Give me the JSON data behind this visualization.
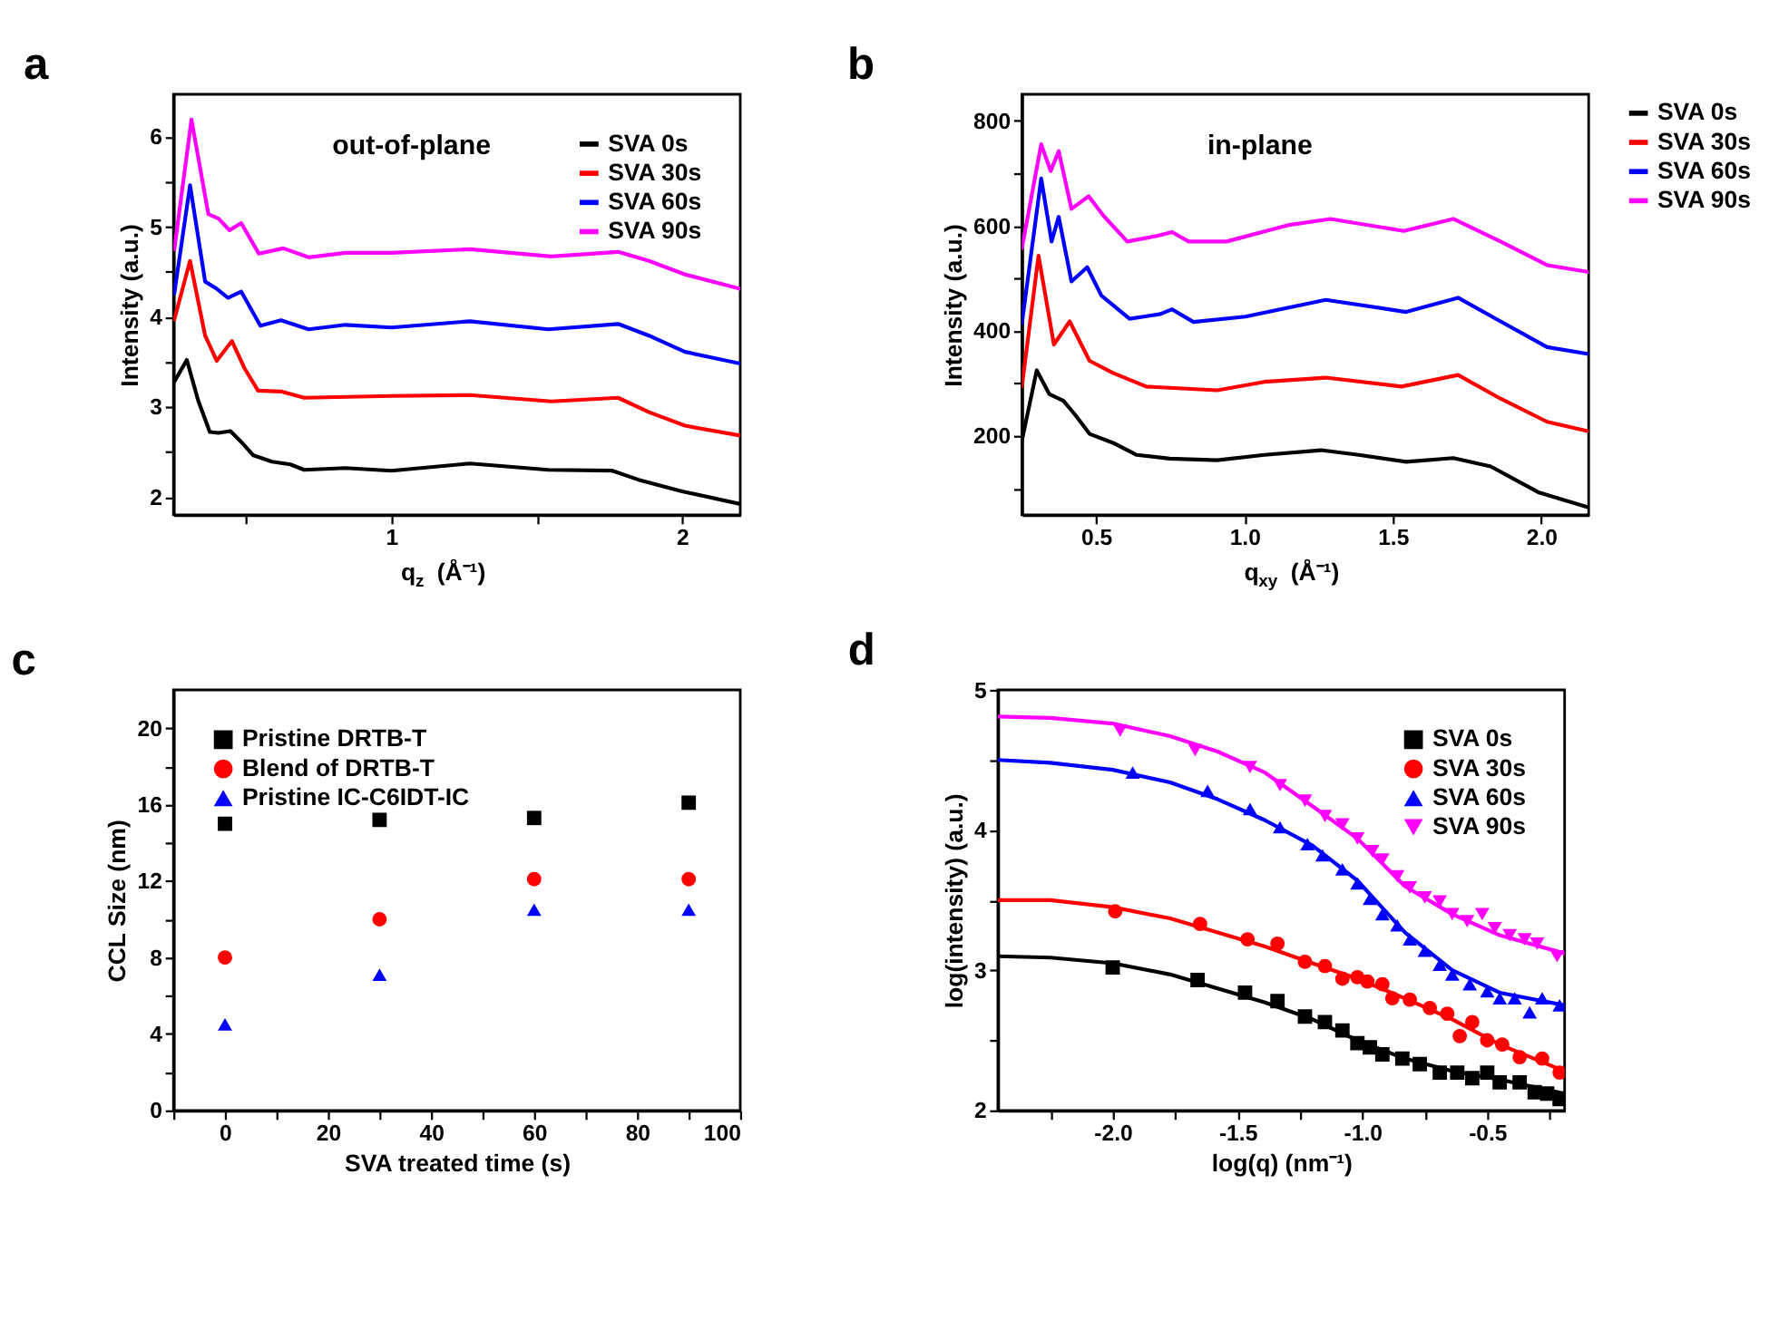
{
  "chart_data": [
    {
      "type": "line",
      "title": "a",
      "xlabel": "q$_{z}$ (Å⁻¹)",
      "ylabel": "Intensity (a.u.)",
      "annotations": [
        "out-of-plane"
      ],
      "legend": "top right",
      "grid": false,
      "xlim": [
        0.25,
        2.2
      ],
      "xticks": [
        {
          "value": 0.5,
          "label": null
        },
        1,
        {
          "value": 1.5,
          "label": null
        },
        2
      ],
      "ylim": [
        1.8,
        6.47
      ],
      "yticks": [
        2,
        {
          "value": 2.5,
          "label": null
        },
        3,
        {
          "value": 3.5,
          "label": null
        },
        4,
        {
          "value": 4.5,
          "label": null
        },
        5,
        {
          "value": 5.5,
          "label": null
        },
        6
      ],
      "series": [
        {
          "name": "SVA 0s",
          "color": "#000000",
          "x": [
            0.253,
            0.296,
            0.335,
            0.375,
            0.405,
            0.446,
            0.486,
            0.525,
            0.589,
            0.652,
            0.7,
            0.842,
            1.0,
            1.27,
            1.54,
            1.76,
            1.85,
            2.0,
            2.2
          ],
          "values": [
            3.28,
            3.52,
            3.07,
            2.72,
            2.71,
            2.73,
            2.6,
            2.46,
            2.39,
            2.36,
            2.3,
            2.32,
            2.29,
            2.37,
            2.3,
            2.29,
            2.19,
            2.06,
            1.92
          ]
        },
        {
          "name": "SVA 30s",
          "color": "#ff0000",
          "x": [
            0.253,
            0.307,
            0.359,
            0.399,
            0.451,
            0.494,
            0.541,
            0.62,
            0.7,
            1.0,
            1.27,
            1.55,
            1.78,
            1.886,
            2.01,
            2.2
          ],
          "values": [
            3.97,
            4.62,
            3.79,
            3.51,
            3.73,
            3.43,
            3.18,
            3.17,
            3.1,
            3.12,
            3.13,
            3.06,
            3.1,
            2.94,
            2.79,
            2.68
          ]
        },
        {
          "name": "SVA 60s",
          "color": "#0000ff",
          "x": [
            0.253,
            0.307,
            0.359,
            0.399,
            0.438,
            0.483,
            0.549,
            0.62,
            0.715,
            0.842,
            1.0,
            1.27,
            1.54,
            1.78,
            1.886,
            2.01,
            2.2
          ],
          "values": [
            4.26,
            5.46,
            4.39,
            4.31,
            4.21,
            4.28,
            3.9,
            3.96,
            3.86,
            3.91,
            3.88,
            3.95,
            3.86,
            3.92,
            3.79,
            3.61,
            3.48
          ]
        },
        {
          "name": "SVA 90s",
          "color": "#ff00ff",
          "x": [
            0.253,
            0.312,
            0.37,
            0.405,
            0.443,
            0.483,
            0.544,
            0.628,
            0.715,
            0.842,
            1.0,
            1.27,
            1.55,
            1.78,
            1.886,
            2.01,
            2.2
          ],
          "values": [
            4.75,
            6.19,
            5.14,
            5.09,
            4.96,
            5.04,
            4.7,
            4.76,
            4.66,
            4.71,
            4.71,
            4.75,
            4.67,
            4.72,
            4.62,
            4.47,
            4.31
          ]
        }
      ]
    },
    {
      "type": "line",
      "title": "b",
      "xlabel": "q$_{xy}$ (Å⁻¹)",
      "ylabel": "Intensity (a.u.)",
      "annotations": [
        "in-plane"
      ],
      "legend": "right",
      "grid": false,
      "xlim": [
        0.25,
        2.16
      ],
      "xticks": [
        0.5,
        {
          "value": 1,
          "label": "1.0"
        },
        1.5,
        {
          "value": 2,
          "label": "2.0"
        }
      ],
      "ylim": [
        50,
        850
      ],
      "yticks": [
        {
          "value": 100,
          "label": null
        },
        200,
        {
          "value": 300,
          "label": null
        },
        400,
        {
          "value": 500,
          "label": null
        },
        600,
        {
          "value": 700,
          "label": null
        },
        800
      ],
      "series": [
        {
          "name": "SVA 0s",
          "color": "#000000",
          "x": [
            0.25,
            0.3,
            0.342,
            0.39,
            0.43,
            0.478,
            0.557,
            0.637,
            0.748,
            0.908,
            1.067,
            1.258,
            1.385,
            1.545,
            1.704,
            1.83,
            1.99,
            2.16
          ],
          "values": [
            191,
            325,
            280,
            267,
            240,
            204,
            187,
            164,
            157,
            154,
            164,
            173,
            164,
            151,
            158,
            142,
            93,
            64
          ]
        },
        {
          "name": "SVA 30s",
          "color": "#ff0000",
          "x": [
            0.25,
            0.306,
            0.358,
            0.411,
            0.478,
            0.557,
            0.669,
            0.908,
            1.067,
            1.274,
            1.529,
            1.72,
            1.863,
            2.02,
            2.16
          ],
          "values": [
            294,
            543,
            374,
            418,
            343,
            320,
            294,
            287,
            303,
            311,
            294,
            316,
            271,
            227,
            209
          ]
        },
        {
          "name": "SVA 60s",
          "color": "#0000ff",
          "x": [
            0.25,
            0.315,
            0.35,
            0.374,
            0.417,
            0.47,
            0.518,
            0.613,
            0.717,
            0.756,
            0.828,
            1.003,
            1.274,
            1.545,
            1.72,
            1.863,
            2.02,
            2.16
          ],
          "values": [
            414,
            690,
            570,
            617,
            494,
            521,
            467,
            423,
            432,
            441,
            417,
            427,
            459,
            436,
            463,
            418,
            369,
            356
          ]
        },
        {
          "name": "SVA 90s",
          "color": "#ff00ff",
          "x": [
            0.25,
            0.315,
            0.347,
            0.374,
            0.417,
            0.475,
            0.525,
            0.605,
            0.709,
            0.756,
            0.812,
            0.94,
            1.146,
            1.29,
            1.537,
            1.704,
            1.863,
            2.02,
            2.16
          ],
          "values": [
            557,
            755,
            704,
            742,
            632,
            656,
            619,
            570,
            581,
            588,
            570,
            570,
            601,
            613,
            590,
            613,
            570,
            525,
            512
          ]
        }
      ]
    },
    {
      "type": "scatter",
      "title": "c",
      "xlabel": "SVA treated time (s)",
      "ylabel": "CCL Size (nm)",
      "legend": "top left",
      "grid": false,
      "x": [
        0,
        30,
        60,
        90
      ],
      "xlim": [
        -10,
        100
      ],
      "xticks": [
        {
          "value": -10,
          "label": null
        },
        0,
        {
          "value": 10,
          "label": null
        },
        20,
        {
          "value": 30,
          "label": null
        },
        40,
        {
          "value": 50,
          "label": null
        },
        60,
        {
          "value": 70,
          "label": null
        },
        80,
        {
          "value": 90,
          "label": null
        },
        100
      ],
      "ylim": [
        0,
        22
      ],
      "yticks": [
        0,
        {
          "value": 2,
          "label": null
        },
        4,
        {
          "value": 6,
          "label": null
        },
        8,
        {
          "value": 10,
          "label": null
        },
        12,
        {
          "value": 14,
          "label": null
        },
        16,
        {
          "value": 18,
          "label": null
        },
        20
      ],
      "series": [
        {
          "name": "Pristine DRTB-T",
          "color": "#000000",
          "marker": "square",
          "values": [
            15.0,
            15.2,
            15.3,
            16.1
          ]
        },
        {
          "name": "Blend of  DRTB-T",
          "color": "#ff0000",
          "marker": "circle",
          "values": [
            8.0,
            10.0,
            12.1,
            12.1
          ]
        },
        {
          "name": "Pristine IC-C6IDT-IC",
          "color": "#0000ff",
          "marker": "triangle",
          "values": [
            4.5,
            7.1,
            10.5,
            10.5
          ]
        }
      ]
    },
    {
      "type": "scatter",
      "title": "d",
      "xlabel": "log(q) (nm⁻¹)",
      "ylabel": "log(intensity) (a.u.)",
      "legend": "top right",
      "grid": false,
      "xlim": [
        -2.46,
        -0.19
      ],
      "xticks": [
        {
          "value": -2.25,
          "label": null
        },
        {
          "value": -2,
          "label": "-2.0"
        },
        {
          "value": -1.75,
          "label": null
        },
        -1.5,
        {
          "value": -1.25,
          "label": null
        },
        {
          "value": -1,
          "label": "-1.0"
        },
        {
          "value": -0.75,
          "label": null
        },
        -0.5,
        {
          "value": -0.25,
          "label": null
        }
      ],
      "ylim": [
        2,
        5
      ],
      "yticks": [
        2,
        {
          "value": 2.5,
          "label": null
        },
        3,
        {
          "value": 3.5,
          "label": null
        },
        4,
        {
          "value": 4.5,
          "label": null
        },
        5
      ],
      "series": [
        {
          "name": "SVA 0s",
          "color": "#000000",
          "marker": "square",
          "x": [
            -2.0,
            -1.66,
            -1.47,
            -1.34,
            -1.23,
            -1.15,
            -1.08,
            -1.02,
            -0.97,
            -0.92,
            -0.84,
            -0.77,
            -0.69,
            -0.62,
            -0.56,
            -0.5,
            -0.45,
            -0.37,
            -0.31,
            -0.26,
            -0.21
          ],
          "values": [
            3.02,
            2.93,
            2.84,
            2.78,
            2.67,
            2.63,
            2.57,
            2.48,
            2.45,
            2.4,
            2.37,
            2.33,
            2.27,
            2.27,
            2.23,
            2.27,
            2.2,
            2.2,
            2.13,
            2.12,
            2.08
          ]
        },
        {
          "name": "SVA 30s",
          "color": "#ff0000",
          "marker": "circle",
          "x": [
            -1.99,
            -1.65,
            -1.46,
            -1.34,
            -1.23,
            -1.15,
            -1.08,
            -1.02,
            -0.98,
            -0.92,
            -0.88,
            -0.81,
            -0.73,
            -0.66,
            -0.61,
            -0.56,
            -0.5,
            -0.44,
            -0.37,
            -0.28,
            -0.21
          ],
          "values": [
            3.42,
            3.33,
            3.22,
            3.19,
            3.06,
            3.03,
            2.94,
            2.95,
            2.92,
            2.9,
            2.8,
            2.79,
            2.73,
            2.69,
            2.53,
            2.63,
            2.5,
            2.47,
            2.38,
            2.37,
            2.27
          ]
        },
        {
          "name": "SVA 60s",
          "color": "#0000ff",
          "marker": "triangle",
          "x": [
            -1.92,
            -1.62,
            -1.45,
            -1.33,
            -1.22,
            -1.16,
            -1.08,
            -1.02,
            -0.97,
            -0.92,
            -0.86,
            -0.81,
            -0.75,
            -0.69,
            -0.64,
            -0.57,
            -0.5,
            -0.45,
            -0.39,
            -0.33,
            -0.28,
            -0.21
          ],
          "values": [
            4.41,
            4.28,
            4.15,
            4.02,
            3.9,
            3.82,
            3.72,
            3.62,
            3.51,
            3.4,
            3.32,
            3.22,
            3.14,
            3.04,
            2.97,
            2.9,
            2.85,
            2.8,
            2.8,
            2.7,
            2.8,
            2.75
          ]
        },
        {
          "name": "SVA 90s",
          "color": "#ff00ff",
          "marker": "triangle-down",
          "x": [
            -1.97,
            -1.67,
            -1.45,
            -1.33,
            -1.23,
            -1.15,
            -1.08,
            -1.02,
            -0.96,
            -0.92,
            -0.86,
            -0.81,
            -0.75,
            -0.69,
            -0.64,
            -0.58,
            -0.52,
            -0.47,
            -0.41,
            -0.35,
            -0.3,
            -0.22
          ],
          "values": [
            4.71,
            4.57,
            4.45,
            4.32,
            4.21,
            4.1,
            4.04,
            3.94,
            3.85,
            3.79,
            3.67,
            3.59,
            3.52,
            3.49,
            3.4,
            3.35,
            3.4,
            3.3,
            3.25,
            3.22,
            3.19,
            3.1
          ]
        },
        {
          "type": "line",
          "color": "#000000",
          "x": [
            -2.46,
            -2.25,
            -2.0,
            -1.77,
            -1.58,
            -1.39,
            -1.2,
            -1.02,
            -0.83,
            -0.64,
            -0.45,
            -0.19
          ],
          "values": [
            3.1,
            3.09,
            3.05,
            2.97,
            2.87,
            2.77,
            2.65,
            2.5,
            2.37,
            2.28,
            2.22,
            2.12
          ]
        },
        {
          "type": "line",
          "color": "#ff0000",
          "x": [
            -2.46,
            -2.25,
            -2.0,
            -1.77,
            -1.58,
            -1.39,
            -1.2,
            -1.02,
            -0.83,
            -0.64,
            -0.45,
            -0.19
          ],
          "values": [
            3.5,
            3.5,
            3.45,
            3.37,
            3.27,
            3.17,
            3.05,
            2.94,
            2.8,
            2.65,
            2.47,
            2.28
          ]
        },
        {
          "type": "line",
          "color": "#0000ff",
          "x": [
            -2.46,
            -2.25,
            -2.0,
            -1.77,
            -1.58,
            -1.39,
            -1.2,
            -1.02,
            -0.83,
            -0.64,
            -0.45,
            -0.19
          ],
          "values": [
            4.5,
            4.48,
            4.43,
            4.34,
            4.22,
            4.07,
            3.89,
            3.64,
            3.27,
            3.0,
            2.84,
            2.75
          ]
        },
        {
          "type": "line",
          "color": "#ff00ff",
          "x": [
            -2.46,
            -2.25,
            -2.0,
            -1.77,
            -1.58,
            -1.39,
            -1.2,
            -1.02,
            -0.83,
            -0.64,
            -0.45,
            -0.19
          ],
          "values": [
            4.81,
            4.8,
            4.76,
            4.67,
            4.56,
            4.41,
            4.17,
            3.94,
            3.6,
            3.4,
            3.25,
            3.12
          ]
        }
      ]
    }
  ]
}
